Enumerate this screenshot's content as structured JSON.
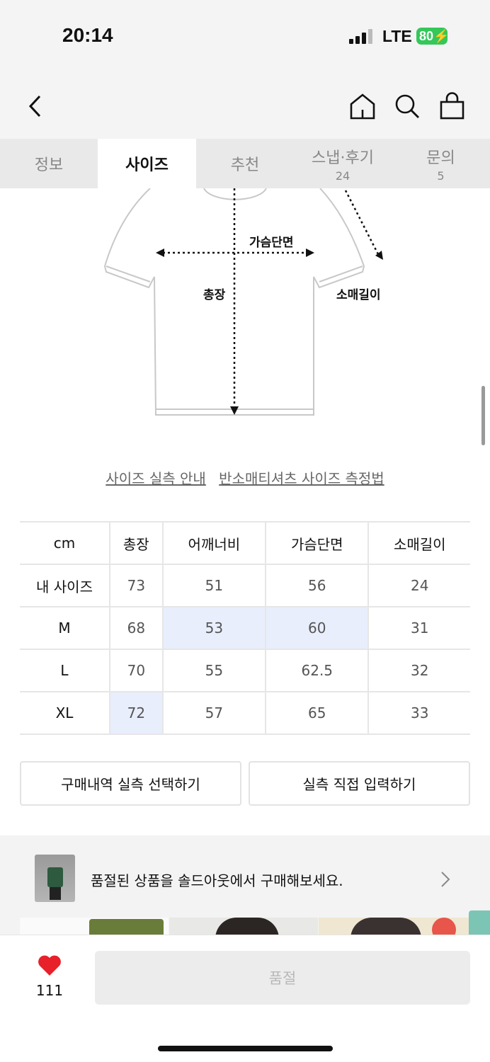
{
  "status": {
    "time": "20:14",
    "network": "LTE",
    "battery": "80"
  },
  "nav": {
    "icons": [
      "back-icon",
      "home-icon",
      "search-icon",
      "bag-icon"
    ]
  },
  "tabs": [
    {
      "label": "정보"
    },
    {
      "label": "사이즈",
      "selected": true
    },
    {
      "label": "추천"
    },
    {
      "label": "스냅·후기",
      "count": "24"
    },
    {
      "label": "문의",
      "count": "5"
    }
  ],
  "diagram": {
    "chest": "가슴단면",
    "length": "총장",
    "sleeve": "소매길이"
  },
  "links": {
    "guide": "사이즈 실측 안내",
    "method": "반소매티셔츠 사이즈 측정법"
  },
  "size_table": {
    "headers": [
      "cm",
      "총장",
      "어깨너비",
      "가슴단면",
      "소매길이"
    ],
    "rows": [
      [
        "내 사이즈",
        "73",
        "51",
        "56",
        "24"
      ],
      [
        "M",
        "68",
        "53",
        "60",
        "31"
      ],
      [
        "L",
        "70",
        "55",
        "62.5",
        "32"
      ],
      [
        "XL",
        "72",
        "57",
        "65",
        "33"
      ]
    ],
    "highlight_color": "#e8eefc"
  },
  "buttons": {
    "select_purchase": "구매내역 실측 선택하기",
    "direct_input": "실측 직접 입력하기"
  },
  "banner": {
    "text": "품절된 상품을 솔드아웃에서 구매해보세요."
  },
  "bottom": {
    "likes": "111",
    "buy_label": "품절",
    "heart_color": "#e8202a"
  }
}
